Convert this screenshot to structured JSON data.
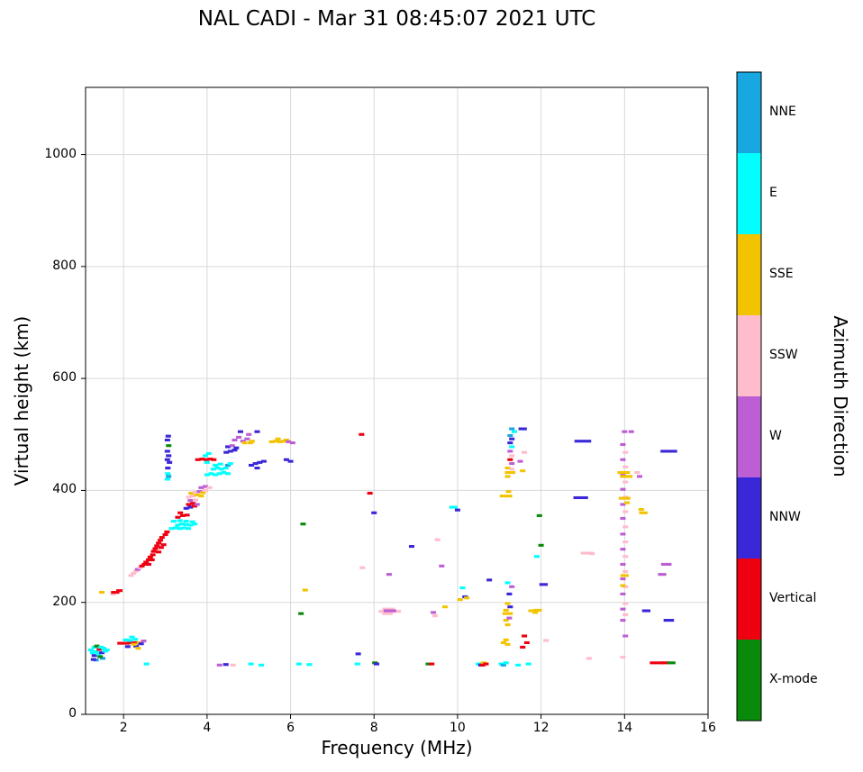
{
  "title": "NAL CADI - Mar 31 08:45:07 2021 UTC",
  "chart_data": {
    "type": "scatter",
    "title": "NAL CADI - Mar 31 08:45:07 2021 UTC",
    "xlabel": "Frequency (MHz)",
    "ylabel": "Virtual height (km)",
    "xlim": [
      1.09,
      16
    ],
    "ylim": [
      0,
      1120
    ],
    "x_ticks": [
      2,
      4,
      6,
      8,
      10,
      12,
      14,
      16
    ],
    "y_ticks": [
      0,
      200,
      400,
      600,
      800,
      1000
    ],
    "grid": true,
    "grid_color": "#d9d9d9",
    "marker": {
      "w_mhz": 0.13,
      "h_km": 5
    },
    "legend": {
      "title": "Azimuth Direction",
      "position": "right-colorbar",
      "categories": [
        {
          "label": "NNE",
          "color": "#18a7e0"
        },
        {
          "label": "E",
          "color": "#00ffff"
        },
        {
          "label": "SSE",
          "color": "#f2c400"
        },
        {
          "label": "SSW",
          "color": "#ffbccc"
        },
        {
          "label": "W",
          "color": "#bd5fd4"
        },
        {
          "label": "NNW",
          "color": "#3a27d8"
        },
        {
          "label": "Vertical",
          "color": "#ee0010"
        },
        {
          "label": "X-mode",
          "color": "#0a8a0a"
        }
      ]
    },
    "points": [
      [
        1.22,
        115,
        1
      ],
      [
        1.26,
        110,
        1
      ],
      [
        1.3,
        120,
        1
      ],
      [
        1.3,
        105,
        5
      ],
      [
        1.34,
        112,
        1
      ],
      [
        1.36,
        122,
        7
      ],
      [
        1.4,
        108,
        1
      ],
      [
        1.42,
        116,
        6
      ],
      [
        1.46,
        120,
        1
      ],
      [
        1.48,
        110,
        5
      ],
      [
        1.52,
        118,
        1
      ],
      [
        1.5,
        100,
        0
      ],
      [
        1.34,
        97,
        0
      ],
      [
        1.44,
        103,
        7
      ],
      [
        1.56,
        113,
        1
      ],
      [
        1.6,
        115,
        1
      ],
      [
        1.28,
        98,
        5
      ],
      [
        1.48,
        218,
        2
      ],
      [
        1.75,
        215,
        3
      ],
      [
        1.8,
        218,
        6,
        0.2
      ],
      [
        1.9,
        221,
        6,
        0.15
      ],
      [
        2.0,
        127,
        6,
        0.3
      ],
      [
        2.25,
        128,
        6,
        0.2
      ],
      [
        2.05,
        133,
        1
      ],
      [
        2.15,
        132,
        1
      ],
      [
        2.28,
        134,
        1
      ],
      [
        2.1,
        121,
        5
      ],
      [
        2.3,
        122,
        5
      ],
      [
        2.25,
        125,
        2
      ],
      [
        2.38,
        128,
        2
      ],
      [
        2.42,
        126,
        5
      ],
      [
        2.48,
        131,
        4
      ],
      [
        2.2,
        138,
        1
      ],
      [
        2.35,
        118,
        2
      ],
      [
        2.55,
        90,
        1
      ],
      [
        2.18,
        248,
        3
      ],
      [
        2.24,
        252,
        3
      ],
      [
        2.3,
        256,
        3
      ],
      [
        2.34,
        259,
        4
      ],
      [
        2.4,
        262,
        3
      ],
      [
        2.44,
        265,
        6
      ],
      [
        2.5,
        268,
        6
      ],
      [
        2.54,
        272,
        6
      ],
      [
        2.6,
        276,
        6
      ],
      [
        2.64,
        281,
        6
      ],
      [
        2.7,
        285,
        6
      ],
      [
        2.72,
        291,
        6
      ],
      [
        2.76,
        296,
        6
      ],
      [
        2.8,
        301,
        6
      ],
      [
        2.84,
        306,
        6
      ],
      [
        2.88,
        311,
        6
      ],
      [
        2.92,
        316,
        6
      ],
      [
        2.84,
        290,
        6
      ],
      [
        2.9,
        298,
        6
      ],
      [
        2.96,
        303,
        6
      ],
      [
        3.0,
        321,
        6
      ],
      [
        3.04,
        326,
        6
      ],
      [
        2.6,
        268,
        6
      ],
      [
        2.68,
        276,
        6
      ],
      [
        3.05,
        420,
        1
      ],
      [
        3.06,
        430,
        1
      ],
      [
        3.08,
        425,
        0
      ],
      [
        3.05,
        455,
        5
      ],
      [
        3.08,
        462,
        5
      ],
      [
        3.05,
        470,
        5
      ],
      [
        3.08,
        480,
        7
      ],
      [
        3.05,
        490,
        5
      ],
      [
        3.07,
        497,
        5
      ],
      [
        3.06,
        440,
        5
      ],
      [
        3.1,
        450,
        5
      ],
      [
        3.15,
        332,
        1
      ],
      [
        3.25,
        333,
        1
      ],
      [
        3.35,
        332,
        1
      ],
      [
        3.45,
        333,
        1
      ],
      [
        3.55,
        332,
        1
      ],
      [
        3.3,
        338,
        1
      ],
      [
        3.4,
        340,
        1
      ],
      [
        3.5,
        339,
        1
      ],
      [
        3.6,
        338,
        1
      ],
      [
        3.2,
        345,
        1
      ],
      [
        3.35,
        346,
        1
      ],
      [
        3.5,
        345,
        1
      ],
      [
        3.65,
        344,
        1
      ],
      [
        3.7,
        340,
        1
      ],
      [
        3.3,
        352,
        6
      ],
      [
        3.42,
        355,
        6
      ],
      [
        3.52,
        356,
        6
      ],
      [
        3.36,
        360,
        6
      ],
      [
        3.5,
        368,
        5
      ],
      [
        3.6,
        370,
        5
      ],
      [
        3.7,
        372,
        6
      ],
      [
        3.56,
        375,
        6
      ],
      [
        3.66,
        377,
        6
      ],
      [
        3.76,
        375,
        4
      ],
      [
        3.6,
        382,
        4
      ],
      [
        3.72,
        383,
        3
      ],
      [
        3.56,
        388,
        3
      ],
      [
        3.66,
        390,
        3
      ],
      [
        3.76,
        392,
        2
      ],
      [
        3.86,
        390,
        2
      ],
      [
        3.62,
        395,
        2
      ],
      [
        3.72,
        397,
        3
      ],
      [
        3.82,
        398,
        4
      ],
      [
        3.9,
        396,
        2
      ],
      [
        3.96,
        400,
        3
      ],
      [
        3.86,
        405,
        4
      ],
      [
        3.96,
        407,
        4
      ],
      [
        4.06,
        405,
        3
      ],
      [
        3.78,
        455,
        6
      ],
      [
        3.88,
        456,
        6
      ],
      [
        3.98,
        455,
        6
      ],
      [
        4.08,
        456,
        6
      ],
      [
        4.16,
        455,
        6
      ],
      [
        4.0,
        428,
        1
      ],
      [
        4.1,
        430,
        1
      ],
      [
        4.2,
        428,
        1
      ],
      [
        4.3,
        430,
        1
      ],
      [
        4.4,
        432,
        1
      ],
      [
        4.5,
        430,
        1
      ],
      [
        4.15,
        438,
        1
      ],
      [
        4.25,
        440,
        1
      ],
      [
        4.35,
        438,
        1
      ],
      [
        4.45,
        440,
        1
      ],
      [
        4.2,
        445,
        1
      ],
      [
        4.32,
        447,
        1
      ],
      [
        4.5,
        445,
        0
      ],
      [
        4.56,
        448,
        1
      ],
      [
        3.96,
        462,
        1
      ],
      [
        4.04,
        466,
        1
      ],
      [
        4.0,
        450,
        1
      ],
      [
        4.46,
        468,
        5
      ],
      [
        4.56,
        470,
        5
      ],
      [
        4.66,
        472,
        5
      ],
      [
        4.5,
        478,
        5
      ],
      [
        4.6,
        480,
        4
      ],
      [
        4.7,
        476,
        5
      ],
      [
        4.66,
        490,
        4
      ],
      [
        4.76,
        495,
        4
      ],
      [
        4.86,
        488,
        4
      ],
      [
        4.96,
        492,
        4
      ],
      [
        4.8,
        505,
        5
      ],
      [
        5.0,
        500,
        4
      ],
      [
        5.08,
        488,
        2
      ],
      [
        4.9,
        485,
        2
      ],
      [
        5.04,
        485,
        2
      ],
      [
        5.06,
        445,
        5
      ],
      [
        5.16,
        448,
        5
      ],
      [
        5.26,
        450,
        5
      ],
      [
        5.2,
        440,
        5
      ],
      [
        5.36,
        452,
        5
      ],
      [
        5.2,
        505,
        5
      ],
      [
        5.55,
        487,
        2
      ],
      [
        5.65,
        488,
        2
      ],
      [
        5.75,
        487,
        2
      ],
      [
        5.85,
        488,
        2
      ],
      [
        5.7,
        492,
        2
      ],
      [
        5.9,
        490,
        2
      ],
      [
        5.95,
        487,
        4
      ],
      [
        5.9,
        455,
        5
      ],
      [
        6.0,
        452,
        5
      ],
      [
        6.05,
        485,
        4
      ],
      [
        6.3,
        340,
        7
      ],
      [
        6.35,
        222,
        2
      ],
      [
        6.25,
        180,
        7
      ],
      [
        6.2,
        90,
        1
      ],
      [
        6.45,
        89,
        1
      ],
      [
        7.6,
        90,
        1
      ],
      [
        7.62,
        108,
        5
      ],
      [
        7.7,
        500,
        6
      ],
      [
        7.72,
        262,
        3
      ],
      [
        7.9,
        395,
        6
      ],
      [
        8.0,
        360,
        5
      ],
      [
        8.02,
        92,
        7
      ],
      [
        8.06,
        90,
        5
      ],
      [
        8.3,
        184,
        3,
        0.38
      ],
      [
        8.52,
        184,
        3,
        0.25
      ],
      [
        8.35,
        188,
        3,
        0.3
      ],
      [
        8.32,
        180,
        3,
        0.25
      ],
      [
        8.38,
        185,
        4,
        0.3
      ],
      [
        8.36,
        250,
        4
      ],
      [
        8.9,
        300,
        5
      ],
      [
        9.3,
        90,
        7
      ],
      [
        9.38,
        90,
        6
      ],
      [
        9.42,
        182,
        4
      ],
      [
        9.46,
        176,
        3
      ],
      [
        9.52,
        312,
        3
      ],
      [
        9.62,
        265,
        4
      ],
      [
        9.7,
        192,
        2
      ],
      [
        9.9,
        370,
        1,
        0.2
      ],
      [
        10.0,
        365,
        5
      ],
      [
        10.06,
        205,
        2
      ],
      [
        10.12,
        226,
        1
      ],
      [
        10.18,
        210,
        5
      ],
      [
        10.22,
        208,
        2
      ],
      [
        10.5,
        90,
        1
      ],
      [
        10.56,
        88,
        5
      ],
      [
        10.62,
        92,
        2
      ],
      [
        10.68,
        90,
        6
      ],
      [
        10.6,
        88,
        6
      ],
      [
        10.76,
        240,
        5
      ],
      [
        11.05,
        90,
        1
      ],
      [
        11.1,
        88,
        0
      ],
      [
        11.16,
        92,
        1
      ],
      [
        11.45,
        88,
        1
      ],
      [
        11.1,
        128,
        2
      ],
      [
        11.2,
        125,
        2
      ],
      [
        11.16,
        133,
        2
      ],
      [
        11.2,
        160,
        2
      ],
      [
        11.16,
        168,
        2
      ],
      [
        11.24,
        172,
        4
      ],
      [
        11.2,
        180,
        2,
        0.25
      ],
      [
        11.16,
        186,
        2
      ],
      [
        11.26,
        192,
        5
      ],
      [
        11.2,
        198,
        2
      ],
      [
        11.24,
        215,
        5
      ],
      [
        11.3,
        228,
        4
      ],
      [
        11.2,
        235,
        1
      ],
      [
        11.16,
        390,
        2,
        0.3
      ],
      [
        11.22,
        398,
        2
      ],
      [
        11.2,
        425,
        2
      ],
      [
        11.26,
        432,
        2,
        0.25
      ],
      [
        11.2,
        440,
        2
      ],
      [
        11.3,
        438,
        3
      ],
      [
        11.3,
        448,
        4
      ],
      [
        11.26,
        455,
        6
      ],
      [
        11.3,
        462,
        3
      ],
      [
        11.26,
        470,
        4
      ],
      [
        11.3,
        478,
        1
      ],
      [
        11.26,
        485,
        5
      ],
      [
        11.3,
        492,
        5
      ],
      [
        11.26,
        498,
        0
      ],
      [
        11.36,
        505,
        1
      ],
      [
        11.3,
        510,
        0
      ],
      [
        11.5,
        452,
        4
      ],
      [
        11.56,
        435,
        2
      ],
      [
        11.6,
        468,
        3
      ],
      [
        11.56,
        510,
        5,
        0.2
      ],
      [
        11.6,
        140,
        6
      ],
      [
        11.66,
        128,
        6
      ],
      [
        11.56,
        120,
        6
      ],
      [
        11.7,
        90,
        1
      ],
      [
        11.76,
        185,
        2
      ],
      [
        11.86,
        182,
        2
      ],
      [
        11.92,
        186,
        2,
        0.2
      ],
      [
        11.9,
        282,
        1
      ],
      [
        11.96,
        355,
        7
      ],
      [
        12.0,
        302,
        7
      ],
      [
        12.06,
        232,
        5,
        0.2
      ],
      [
        12.12,
        132,
        3
      ],
      [
        13.0,
        488,
        5,
        0.4
      ],
      [
        12.95,
        387,
        5,
        0.35
      ],
      [
        13.1,
        288,
        3,
        0.3
      ],
      [
        13.22,
        287,
        3
      ],
      [
        13.15,
        100,
        3
      ],
      [
        13.96,
        102,
        3
      ],
      [
        14.02,
        140,
        4
      ],
      [
        13.96,
        168,
        4
      ],
      [
        14.02,
        178,
        3
      ],
      [
        13.96,
        188,
        4
      ],
      [
        14.02,
        198,
        3
      ],
      [
        13.96,
        215,
        4
      ],
      [
        14.02,
        228,
        3
      ],
      [
        13.96,
        242,
        4
      ],
      [
        14.02,
        255,
        3
      ],
      [
        13.96,
        268,
        4
      ],
      [
        14.02,
        282,
        3
      ],
      [
        13.96,
        295,
        4
      ],
      [
        14.02,
        308,
        3
      ],
      [
        13.96,
        322,
        4
      ],
      [
        14.02,
        335,
        3
      ],
      [
        13.96,
        350,
        4
      ],
      [
        14.02,
        362,
        3
      ],
      [
        13.96,
        375,
        4
      ],
      [
        14.02,
        388,
        3
      ],
      [
        13.96,
        402,
        4
      ],
      [
        14.02,
        415,
        3
      ],
      [
        13.96,
        428,
        4
      ],
      [
        14.02,
        442,
        3
      ],
      [
        13.96,
        455,
        4
      ],
      [
        14.02,
        468,
        3
      ],
      [
        13.96,
        482,
        4
      ],
      [
        14.0,
        505,
        4
      ],
      [
        14.0,
        386,
        2,
        0.28
      ],
      [
        14.04,
        425,
        2,
        0.3
      ],
      [
        13.98,
        432,
        2,
        0.3
      ],
      [
        14.0,
        248,
        2,
        0.2
      ],
      [
        13.96,
        230,
        2
      ],
      [
        14.06,
        378,
        2
      ],
      [
        14.3,
        432,
        3
      ],
      [
        14.36,
        425,
        4
      ],
      [
        14.16,
        505,
        4
      ],
      [
        14.45,
        360,
        2,
        0.2
      ],
      [
        14.4,
        366,
        2
      ],
      [
        14.52,
        185,
        5,
        0.2
      ],
      [
        14.78,
        92,
        6,
        0.35
      ],
      [
        14.98,
        92,
        6,
        0.2
      ],
      [
        15.12,
        92,
        7,
        0.2
      ],
      [
        14.9,
        250,
        4,
        0.2
      ],
      [
        15.0,
        268,
        4,
        0.25
      ],
      [
        15.06,
        470,
        5,
        0.4
      ],
      [
        15.06,
        168,
        5,
        0.25
      ],
      [
        4.3,
        88,
        4
      ],
      [
        4.45,
        89,
        5
      ],
      [
        5.05,
        90,
        1
      ],
      [
        5.3,
        88,
        1
      ],
      [
        4.62,
        88,
        3
      ]
    ]
  }
}
